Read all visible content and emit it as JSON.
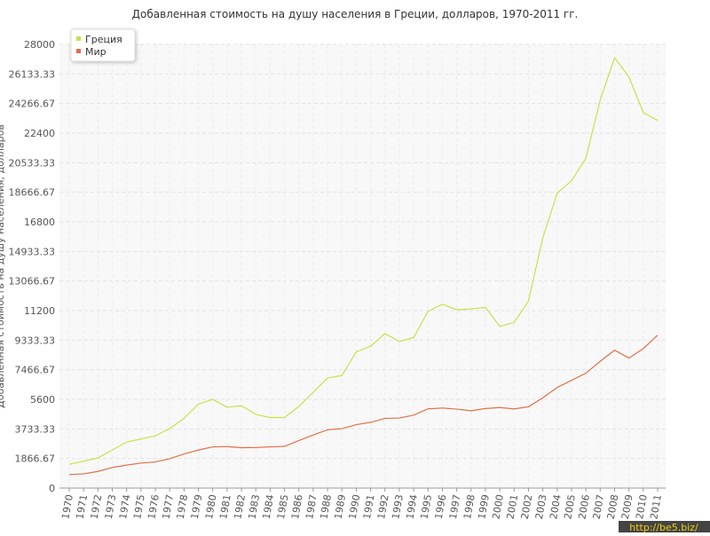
{
  "chart_data": {
    "type": "line",
    "title": "Добавленная стоимость на душу населения в Греции, долларов, 1970-2011 гг.",
    "y_label": "Добавленная стоимость на душу населения, долларов",
    "x": [
      1970,
      1971,
      1972,
      1973,
      1974,
      1975,
      1976,
      1977,
      1978,
      1979,
      1980,
      1981,
      1982,
      1983,
      1984,
      1985,
      1986,
      1987,
      1988,
      1989,
      1990,
      1991,
      1992,
      1993,
      1994,
      1995,
      1996,
      1997,
      1998,
      1999,
      2000,
      2001,
      2002,
      2003,
      2004,
      2005,
      2006,
      2007,
      2008,
      2009,
      2010,
      2011
    ],
    "series": [
      {
        "name": "Греция",
        "color": "#c8e04c",
        "values": [
          1500,
          1700,
          1900,
          2400,
          2900,
          3100,
          3300,
          3750,
          4400,
          5300,
          5600,
          5100,
          5200,
          4650,
          4450,
          4450,
          5150,
          6050,
          6950,
          7100,
          8600,
          8950,
          9750,
          9250,
          9500,
          11150,
          11600,
          11250,
          11300,
          11400,
          10200,
          10450,
          11800,
          15800,
          18600,
          19400,
          20800,
          24500,
          27150,
          25950,
          23700,
          23200
        ]
      },
      {
        "name": "Мир",
        "color": "#e07046",
        "values": [
          850,
          900,
          1050,
          1300,
          1450,
          1580,
          1650,
          1850,
          2150,
          2400,
          2600,
          2620,
          2550,
          2560,
          2600,
          2630,
          3000,
          3350,
          3680,
          3750,
          4000,
          4150,
          4400,
          4420,
          4600,
          5000,
          5050,
          4980,
          4880,
          5020,
          5080,
          5000,
          5130,
          5700,
          6350,
          6800,
          7250,
          8000,
          8700,
          8200,
          8800,
          9650
        ]
      }
    ],
    "xlim": [
      1970,
      2011
    ],
    "ylim": [
      0,
      28000
    ],
    "yticks": [
      0,
      1866.67,
      3733.33,
      5600,
      7466.67,
      9333.33,
      11200,
      13066.67,
      14933.33,
      16800,
      18666.67,
      20533.33,
      22400,
      24266.67,
      26133.33,
      28000
    ],
    "grid": true,
    "legend": "top-left"
  },
  "watermark": "http://be5.biz/"
}
